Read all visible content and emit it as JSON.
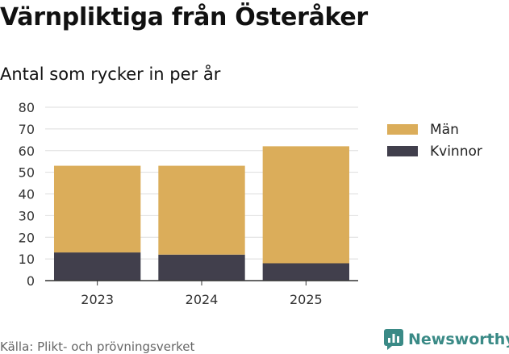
{
  "title": "Värnpliktiga från Österåker",
  "subtitle": "Antal som rycker in per år",
  "source": "Källa: Plikt- och prövningsverket",
  "brand": {
    "name": "Newsworthy",
    "color": "#3a8a86",
    "icon": "bar-chart-logo-icon"
  },
  "chart_data": {
    "type": "bar",
    "stacked": true,
    "categories": [
      "2023",
      "2024",
      "2025"
    ],
    "series": [
      {
        "name": "Kvinnor",
        "color": "#413f4c",
        "values": [
          13,
          12,
          8
        ]
      },
      {
        "name": "Män",
        "color": "#dbad5a",
        "values": [
          40,
          41,
          54
        ]
      }
    ],
    "legend_order": [
      "Män",
      "Kvinnor"
    ],
    "ylim": [
      0,
      80
    ],
    "yticks": [
      0,
      10,
      20,
      30,
      40,
      50,
      60,
      70,
      80
    ],
    "grid": true,
    "legend_position": "right"
  }
}
